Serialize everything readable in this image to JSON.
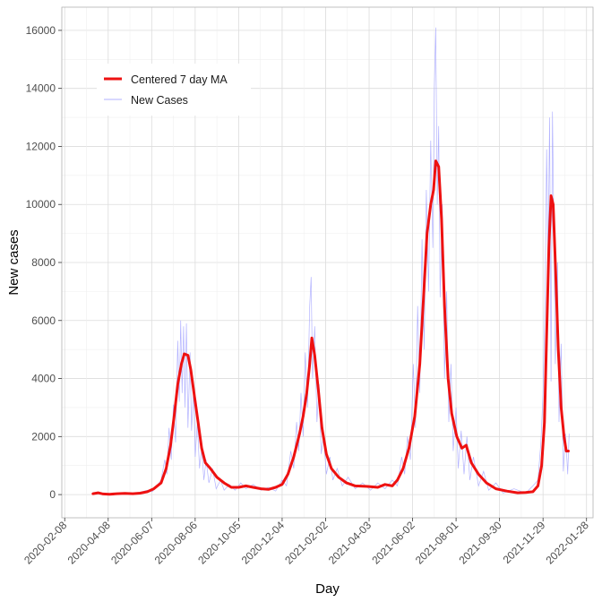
{
  "chart_data": {
    "type": "line",
    "title": "",
    "xlabel": "Day",
    "ylabel": "New cases",
    "x_ticks": [
      "2020-02-08",
      "2020-04-08",
      "2020-06-07",
      "2020-08-06",
      "2020-10-05",
      "2020-12-04",
      "2021-02-02",
      "2021-04-03",
      "2021-06-02",
      "2021-08-01",
      "2021-09-30",
      "2021-11-29",
      "2022-01-28"
    ],
    "y_ticks": [
      0,
      2000,
      4000,
      6000,
      8000,
      10000,
      12000,
      14000,
      16000
    ],
    "ylim": [
      -800,
      16800
    ],
    "xlim": [
      "2020-02-04",
      "2022-02-06"
    ],
    "grid": true,
    "legend_position": "top-left",
    "series": [
      {
        "name": "Centered 7 day MA",
        "color": "#ee1111",
        "points": [
          [
            "2020-03-18",
            30
          ],
          [
            "2020-03-25",
            60
          ],
          [
            "2020-04-01",
            20
          ],
          [
            "2020-04-10",
            10
          ],
          [
            "2020-04-20",
            30
          ],
          [
            "2020-05-01",
            40
          ],
          [
            "2020-05-12",
            30
          ],
          [
            "2020-05-22",
            50
          ],
          [
            "2020-06-01",
            100
          ],
          [
            "2020-06-10",
            200
          ],
          [
            "2020-06-20",
            400
          ],
          [
            "2020-06-27",
            900
          ],
          [
            "2020-07-03",
            1700
          ],
          [
            "2020-07-08",
            2700
          ],
          [
            "2020-07-13",
            3800
          ],
          [
            "2020-07-18",
            4500
          ],
          [
            "2020-07-22",
            4850
          ],
          [
            "2020-07-27",
            4800
          ],
          [
            "2020-07-31",
            4300
          ],
          [
            "2020-08-05",
            3400
          ],
          [
            "2020-08-10",
            2500
          ],
          [
            "2020-08-15",
            1600
          ],
          [
            "2020-08-20",
            1100
          ],
          [
            "2020-08-27",
            900
          ],
          [
            "2020-09-05",
            600
          ],
          [
            "2020-09-15",
            400
          ],
          [
            "2020-09-25",
            250
          ],
          [
            "2020-10-05",
            250
          ],
          [
            "2020-10-15",
            300
          ],
          [
            "2020-10-25",
            250
          ],
          [
            "2020-11-05",
            200
          ],
          [
            "2020-11-15",
            180
          ],
          [
            "2020-11-25",
            250
          ],
          [
            "2020-12-04",
            350
          ],
          [
            "2020-12-12",
            700
          ],
          [
            "2020-12-20",
            1300
          ],
          [
            "2020-12-28",
            2100
          ],
          [
            "2021-01-02",
            2700
          ],
          [
            "2021-01-07",
            3500
          ],
          [
            "2021-01-11",
            4500
          ],
          [
            "2021-01-14",
            5400
          ],
          [
            "2021-01-18",
            4800
          ],
          [
            "2021-01-23",
            3600
          ],
          [
            "2021-01-28",
            2300
          ],
          [
            "2021-02-03",
            1400
          ],
          [
            "2021-02-10",
            900
          ],
          [
            "2021-02-20",
            600
          ],
          [
            "2021-03-03",
            400
          ],
          [
            "2021-03-15",
            300
          ],
          [
            "2021-04-01",
            280
          ],
          [
            "2021-04-15",
            250
          ],
          [
            "2021-04-25",
            350
          ],
          [
            "2021-05-05",
            300
          ],
          [
            "2021-05-12",
            500
          ],
          [
            "2021-05-20",
            900
          ],
          [
            "2021-05-28",
            1600
          ],
          [
            "2021-06-05",
            2700
          ],
          [
            "2021-06-12",
            4500
          ],
          [
            "2021-06-18",
            7200
          ],
          [
            "2021-06-22",
            9000
          ],
          [
            "2021-06-27",
            10000
          ],
          [
            "2021-07-01",
            10500
          ],
          [
            "2021-07-04",
            11500
          ],
          [
            "2021-07-08",
            11300
          ],
          [
            "2021-07-12",
            9500
          ],
          [
            "2021-07-16",
            6500
          ],
          [
            "2021-07-21",
            4000
          ],
          [
            "2021-07-26",
            2800
          ],
          [
            "2021-08-02",
            2000
          ],
          [
            "2021-08-09",
            1600
          ],
          [
            "2021-08-15",
            1700
          ],
          [
            "2021-08-22",
            1100
          ],
          [
            "2021-09-01",
            700
          ],
          [
            "2021-09-12",
            400
          ],
          [
            "2021-09-25",
            200
          ],
          [
            "2021-10-10",
            120
          ],
          [
            "2021-10-25",
            60
          ],
          [
            "2021-11-05",
            70
          ],
          [
            "2021-11-15",
            100
          ],
          [
            "2021-11-22",
            300
          ],
          [
            "2021-11-27",
            1000
          ],
          [
            "2021-12-01",
            2500
          ],
          [
            "2021-12-04",
            5500
          ],
          [
            "2021-12-07",
            8500
          ],
          [
            "2021-12-10",
            10300
          ],
          [
            "2021-12-13",
            10000
          ],
          [
            "2021-12-16",
            8000
          ],
          [
            "2021-12-20",
            5000
          ],
          [
            "2021-12-24",
            3000
          ],
          [
            "2021-12-28",
            2000
          ],
          [
            "2021-12-31",
            1500
          ],
          [
            "2022-01-03",
            1500
          ]
        ]
      },
      {
        "name": "New Cases",
        "color": "#9999ff",
        "points": [
          [
            "2020-03-18",
            40
          ],
          [
            "2020-03-25",
            80
          ],
          [
            "2020-04-01",
            10
          ],
          [
            "2020-04-10",
            20
          ],
          [
            "2020-04-20",
            40
          ],
          [
            "2020-05-01",
            60
          ],
          [
            "2020-05-12",
            20
          ],
          [
            "2020-05-22",
            80
          ],
          [
            "2020-06-01",
            150
          ],
          [
            "2020-06-08",
            100
          ],
          [
            "2020-06-14",
            300
          ],
          [
            "2020-06-20",
            500
          ],
          [
            "2020-06-25",
            1200
          ],
          [
            "2020-06-28",
            700
          ],
          [
            "2020-07-01",
            2300
          ],
          [
            "2020-07-04",
            1200
          ],
          [
            "2020-07-07",
            3100
          ],
          [
            "2020-07-10",
            1800
          ],
          [
            "2020-07-13",
            5300
          ],
          [
            "2020-07-15",
            3200
          ],
          [
            "2020-07-17",
            6000
          ],
          [
            "2020-07-19",
            3500
          ],
          [
            "2020-07-21",
            5800
          ],
          [
            "2020-07-23",
            3000
          ],
          [
            "2020-07-25",
            5900
          ],
          [
            "2020-07-27",
            2300
          ],
          [
            "2020-07-30",
            4900
          ],
          [
            "2020-08-01",
            2200
          ],
          [
            "2020-08-04",
            3700
          ],
          [
            "2020-08-06",
            1300
          ],
          [
            "2020-08-09",
            2500
          ],
          [
            "2020-08-12",
            900
          ],
          [
            "2020-08-15",
            1600
          ],
          [
            "2020-08-18",
            500
          ],
          [
            "2020-08-21",
            1200
          ],
          [
            "2020-08-25",
            400
          ],
          [
            "2020-08-30",
            900
          ],
          [
            "2020-09-04",
            200
          ],
          [
            "2020-09-10",
            500
          ],
          [
            "2020-09-15",
            150
          ],
          [
            "2020-09-22",
            350
          ],
          [
            "2020-09-30",
            150
          ],
          [
            "2020-10-08",
            400
          ],
          [
            "2020-10-15",
            200
          ],
          [
            "2020-10-25",
            350
          ],
          [
            "2020-11-05",
            150
          ],
          [
            "2020-11-15",
            250
          ],
          [
            "2020-11-25",
            120
          ],
          [
            "2020-12-04",
            500
          ],
          [
            "2020-12-10",
            300
          ],
          [
            "2020-12-16",
            1500
          ],
          [
            "2020-12-20",
            900
          ],
          [
            "2020-12-24",
            2500
          ],
          [
            "2020-12-27",
            1500
          ],
          [
            "2020-12-30",
            3500
          ],
          [
            "2021-01-02",
            2000
          ],
          [
            "2021-01-05",
            4900
          ],
          [
            "2021-01-08",
            3000
          ],
          [
            "2021-01-11",
            6500
          ],
          [
            "2021-01-13",
            7500
          ],
          [
            "2021-01-15",
            4000
          ],
          [
            "2021-01-18",
            5800
          ],
          [
            "2021-01-21",
            2500
          ],
          [
            "2021-01-24",
            3800
          ],
          [
            "2021-01-27",
            1400
          ],
          [
            "2021-01-30",
            2000
          ],
          [
            "2021-02-03",
            700
          ],
          [
            "2021-02-08",
            1300
          ],
          [
            "2021-02-12",
            500
          ],
          [
            "2021-02-18",
            900
          ],
          [
            "2021-02-25",
            300
          ],
          [
            "2021-03-05",
            600
          ],
          [
            "2021-03-15",
            200
          ],
          [
            "2021-03-25",
            400
          ],
          [
            "2021-04-05",
            150
          ],
          [
            "2021-04-15",
            400
          ],
          [
            "2021-04-25",
            200
          ],
          [
            "2021-05-05",
            500
          ],
          [
            "2021-05-12",
            300
          ],
          [
            "2021-05-18",
            1300
          ],
          [
            "2021-05-22",
            700
          ],
          [
            "2021-05-26",
            2000
          ],
          [
            "2021-05-30",
            1200
          ],
          [
            "2021-06-03",
            4500
          ],
          [
            "2021-06-06",
            2300
          ],
          [
            "2021-06-09",
            6500
          ],
          [
            "2021-06-12",
            3500
          ],
          [
            "2021-06-15",
            8800
          ],
          [
            "2021-06-18",
            5000
          ],
          [
            "2021-06-21",
            10500
          ],
          [
            "2021-06-24",
            7000
          ],
          [
            "2021-06-27",
            12200
          ],
          [
            "2021-06-30",
            8500
          ],
          [
            "2021-07-02",
            14000
          ],
          [
            "2021-07-04",
            16100
          ],
          [
            "2021-07-06",
            10000
          ],
          [
            "2021-07-08",
            12700
          ],
          [
            "2021-07-10",
            6800
          ],
          [
            "2021-07-13",
            10000
          ],
          [
            "2021-07-16",
            4000
          ],
          [
            "2021-07-19",
            7000
          ],
          [
            "2021-07-22",
            2500
          ],
          [
            "2021-07-25",
            4500
          ],
          [
            "2021-07-28",
            1500
          ],
          [
            "2021-08-01",
            3000
          ],
          [
            "2021-08-04",
            900
          ],
          [
            "2021-08-08",
            2200
          ],
          [
            "2021-08-12",
            700
          ],
          [
            "2021-08-16",
            2000
          ],
          [
            "2021-08-20",
            500
          ],
          [
            "2021-08-25",
            1300
          ],
          [
            "2021-09-01",
            300
          ],
          [
            "2021-09-08",
            800
          ],
          [
            "2021-09-15",
            150
          ],
          [
            "2021-09-25",
            400
          ],
          [
            "2021-10-05",
            50
          ],
          [
            "2021-10-20",
            200
          ],
          [
            "2021-11-05",
            50
          ],
          [
            "2021-11-15",
            300
          ],
          [
            "2021-11-22",
            500
          ],
          [
            "2021-11-26",
            1800
          ],
          [
            "2021-11-29",
            3500
          ],
          [
            "2021-12-02",
            7000
          ],
          [
            "2021-12-04",
            11900
          ],
          [
            "2021-12-06",
            8000
          ],
          [
            "2021-12-08",
            13000
          ],
          [
            "2021-12-10",
            3900
          ],
          [
            "2021-12-12",
            13200
          ],
          [
            "2021-12-14",
            9000
          ],
          [
            "2021-12-16",
            4500
          ],
          [
            "2021-12-19",
            8000
          ],
          [
            "2021-12-21",
            2500
          ],
          [
            "2021-12-24",
            5200
          ],
          [
            "2021-12-27",
            800
          ],
          [
            "2021-12-30",
            2100
          ],
          [
            "2022-01-02",
            700
          ],
          [
            "2022-01-04",
            2100
          ]
        ]
      }
    ]
  }
}
